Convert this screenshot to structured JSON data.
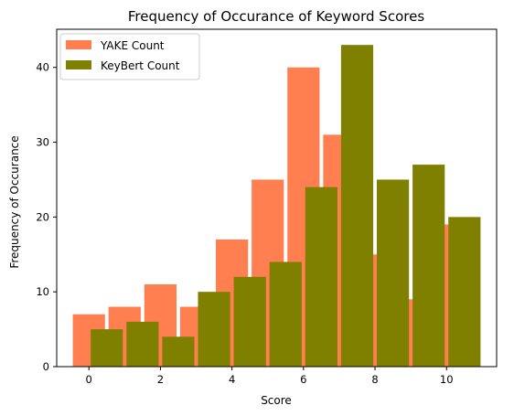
{
  "chart_data": {
    "type": "bar",
    "title": "Frequency of Occurance of Keyword Scores",
    "xlabel": "Score",
    "ylabel": "Frequency of Occurance",
    "xlim": [
      -0.9,
      11.4
    ],
    "ylim": [
      0,
      45.1
    ],
    "xticks": [
      0,
      2,
      4,
      6,
      8,
      10
    ],
    "yticks": [
      0,
      10,
      20,
      30,
      40
    ],
    "bar_width": 0.9,
    "legend_position": "top-left",
    "grid": false,
    "series": [
      {
        "name": "YAKE Count",
        "color": "#ff7f50",
        "x": [
          0,
          1,
          2,
          3,
          4,
          5,
          6,
          7,
          8,
          9,
          10
        ],
        "values": [
          7,
          8,
          11,
          8,
          17,
          25,
          40,
          31,
          15,
          9,
          19
        ]
      },
      {
        "name": "KeyBert Count",
        "color": "#808000",
        "x": [
          0.5,
          1.5,
          2.5,
          3.5,
          4.5,
          5.5,
          6.5,
          7.5,
          8.5,
          9.5,
          10.5
        ],
        "values": [
          5,
          6,
          4,
          10,
          12,
          14,
          24,
          43,
          25,
          27,
          20
        ]
      }
    ]
  }
}
